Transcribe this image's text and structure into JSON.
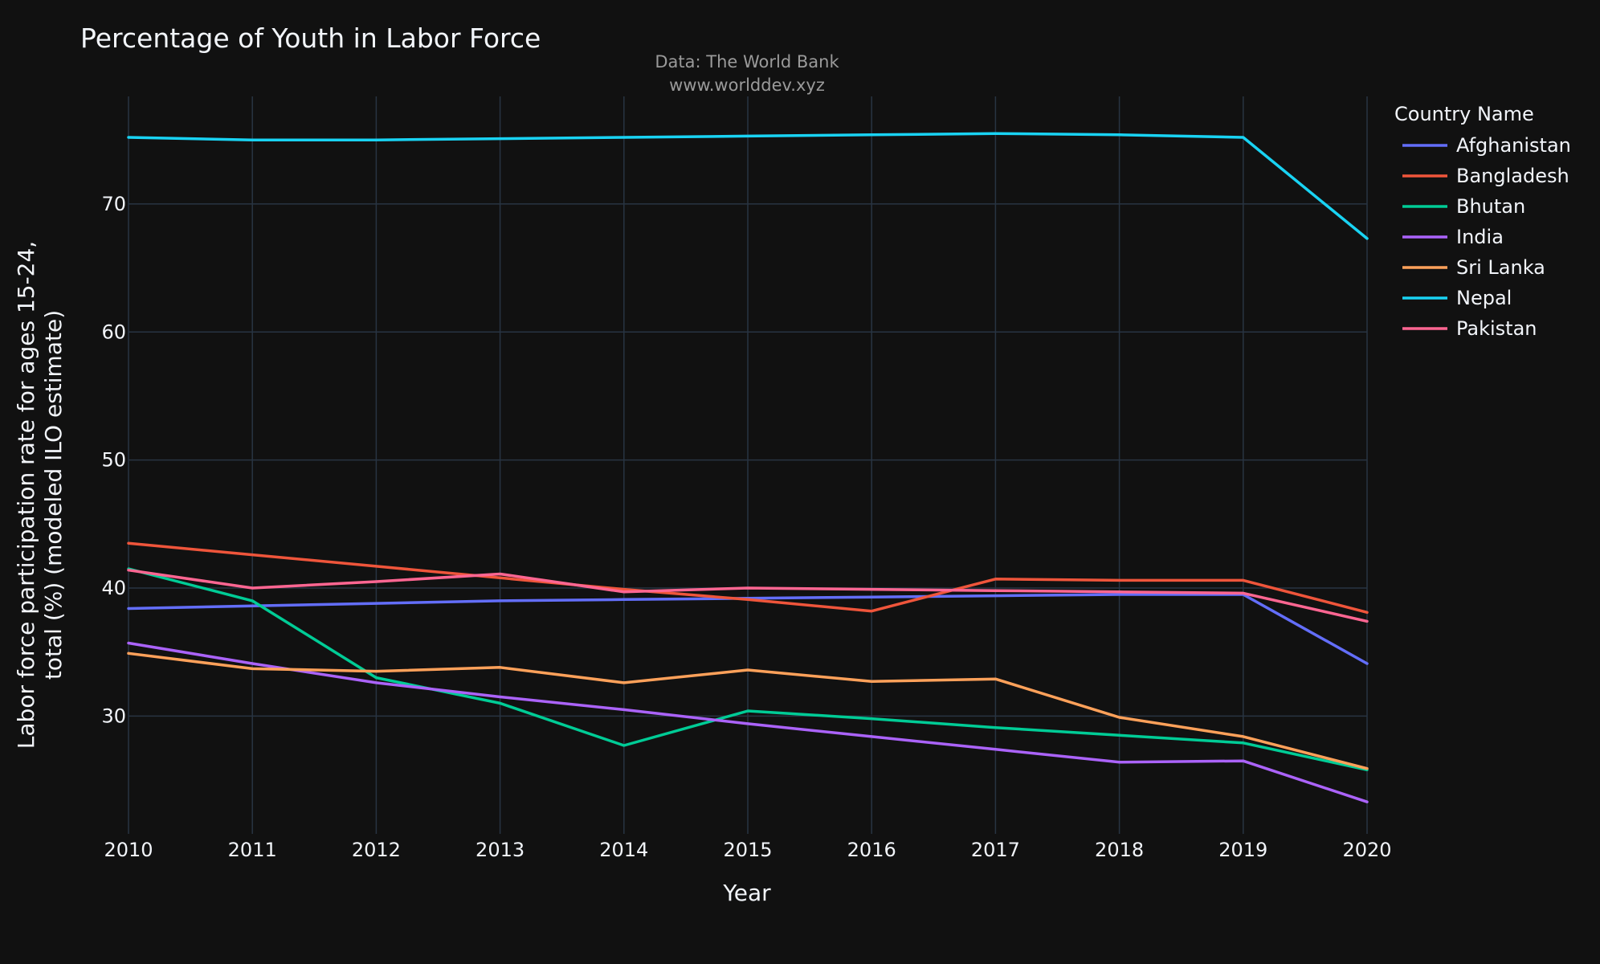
{
  "chart_data": {
    "type": "line",
    "title": "Percentage of Youth in Labor Force",
    "subtitle_lines": [
      "Data: The World Bank",
      "www.worlddev.xyz"
    ],
    "xlabel": "Year",
    "ylabel_lines": [
      "Labor force participation rate for ages 15-24,",
      "total (%) (modeled ILO estimate)"
    ],
    "legend_title": "Country Name",
    "legend_position": "top-right, outside plot",
    "grid": true,
    "x": [
      2010,
      2011,
      2012,
      2013,
      2014,
      2015,
      2016,
      2017,
      2018,
      2019,
      2020
    ],
    "x_ticks": [
      2010,
      2011,
      2012,
      2013,
      2014,
      2015,
      2016,
      2017,
      2018,
      2019,
      2020
    ],
    "y_ticks": [
      30,
      40,
      50,
      60,
      70
    ],
    "xlim": [
      2010,
      2020
    ],
    "ylim": [
      20.8,
      78.4
    ],
    "series": [
      {
        "name": "Afghanistan",
        "color": "#636efa",
        "values": [
          38.4,
          38.6,
          38.8,
          39.0,
          39.1,
          39.2,
          39.3,
          39.4,
          39.5,
          39.5,
          34.1
        ]
      },
      {
        "name": "Bangladesh",
        "color": "#ef553b",
        "values": [
          43.5,
          42.6,
          41.7,
          40.8,
          39.9,
          39.1,
          38.2,
          40.7,
          40.6,
          40.6,
          38.1
        ]
      },
      {
        "name": "Bhutan",
        "color": "#00cc96",
        "values": [
          41.5,
          39.0,
          33.0,
          31.0,
          27.7,
          30.4,
          29.8,
          29.1,
          28.5,
          27.9,
          25.8
        ]
      },
      {
        "name": "India",
        "color": "#ab63fa",
        "values": [
          35.7,
          34.1,
          32.6,
          31.5,
          30.5,
          29.4,
          28.4,
          27.4,
          26.4,
          26.5,
          23.3
        ]
      },
      {
        "name": "Sri Lanka",
        "color": "#ffa15a",
        "values": [
          34.9,
          33.7,
          33.5,
          33.8,
          32.6,
          33.6,
          32.7,
          32.9,
          29.9,
          28.4,
          25.9
        ]
      },
      {
        "name": "Nepal",
        "color": "#19d3f3",
        "values": [
          75.2,
          75.0,
          75.0,
          75.1,
          75.2,
          75.3,
          75.4,
          75.5,
          75.4,
          75.2,
          67.3
        ]
      },
      {
        "name": "Pakistan",
        "color": "#ff6692",
        "values": [
          41.4,
          40.0,
          40.5,
          41.1,
          39.7,
          40.0,
          39.9,
          39.8,
          39.7,
          39.6,
          37.4
        ]
      }
    ]
  }
}
